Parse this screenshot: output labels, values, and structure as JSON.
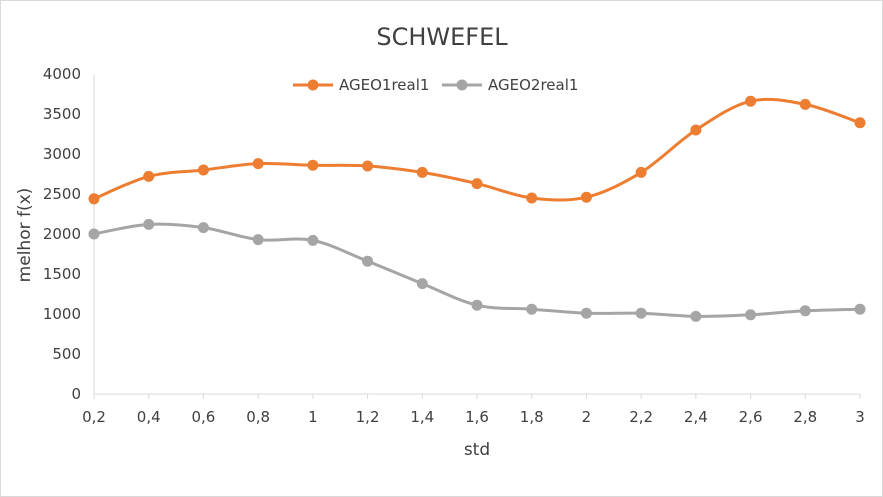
{
  "chart_data": {
    "type": "line",
    "title": "SCHWEFEL",
    "xlabel": "std",
    "ylabel": "melhor f(x)",
    "categories": [
      "0,2",
      "0,4",
      "0,6",
      "0,8",
      "1",
      "1,2",
      "1,4",
      "1,6",
      "1,8",
      "2",
      "2,2",
      "2,4",
      "2,6",
      "2,8",
      "3"
    ],
    "ylim": [
      0,
      4000
    ],
    "yticks": [
      "0",
      "500",
      "1000",
      "1500",
      "2000",
      "2500",
      "3000",
      "3500",
      "4000"
    ],
    "grid": false,
    "legend": "top-center",
    "series": [
      {
        "name": "AGEO1real1",
        "color": "#ed7d31",
        "values": [
          2440,
          2720,
          2800,
          2880,
          2860,
          2850,
          2770,
          2630,
          2450,
          2460,
          2770,
          3300,
          3660,
          3620,
          3390
        ]
      },
      {
        "name": "AGEO2real1",
        "color": "#a5a5a5",
        "values": [
          2000,
          2120,
          2080,
          1930,
          1920,
          1660,
          1380,
          1110,
          1060,
          1010,
          1010,
          970,
          990,
          1040,
          1060
        ]
      }
    ]
  }
}
